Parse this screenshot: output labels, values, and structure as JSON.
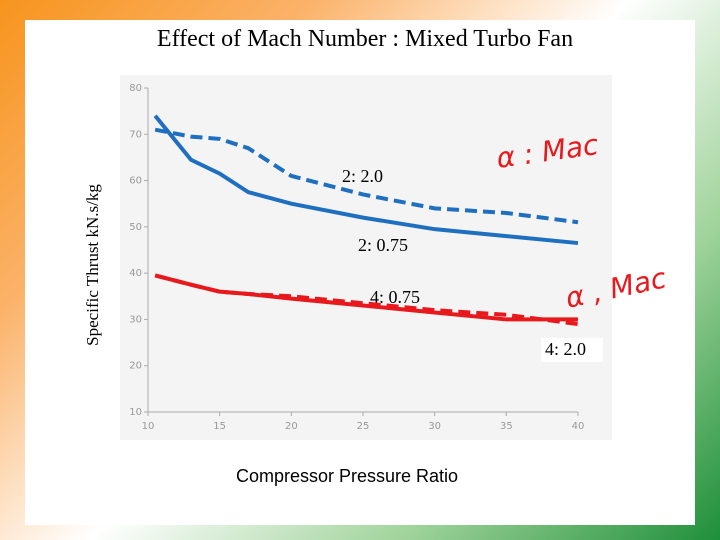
{
  "chart_data": {
    "type": "line",
    "title": "Effect of Mach Number : Mixed Turbo Fan",
    "x_label": "Compressor Pressure Ratio",
    "y_label": "Specific Thrust kN.s/kg",
    "x": [
      10.5,
      13,
      15,
      17,
      20,
      25,
      30,
      35,
      40
    ],
    "series": [
      {
        "name": "2: 2.0",
        "color": "#1f6fc0",
        "dashed": true,
        "values": [
          71,
          69.5,
          69,
          67,
          61,
          57,
          54,
          53,
          51
        ]
      },
      {
        "name": "2: 0.75",
        "color": "#1f6fc0",
        "dashed": false,
        "values": [
          74,
          64.5,
          61.5,
          57.5,
          55,
          52,
          49.5,
          48,
          46.5
        ]
      },
      {
        "name": "4: 0.75",
        "color": "#e8191c",
        "dashed": false,
        "values": [
          39.5,
          37.5,
          36,
          35.5,
          34.5,
          33,
          31.5,
          30,
          30
        ]
      },
      {
        "name": "4: 2.0",
        "color": "#e8191c",
        "dashed": true,
        "values": [
          39.5,
          37.5,
          36,
          35.5,
          35,
          33.5,
          32,
          31,
          29
        ]
      }
    ],
    "annotations": [
      "α : Mac",
      "α , Mac"
    ],
    "xlim": [
      10,
      40
    ],
    "xticks": [
      10,
      15,
      20,
      25,
      30,
      35,
      40
    ],
    "ylim": [
      10,
      80
    ],
    "yticks": [
      10,
      20,
      30,
      40,
      50,
      60,
      70,
      80
    ]
  }
}
